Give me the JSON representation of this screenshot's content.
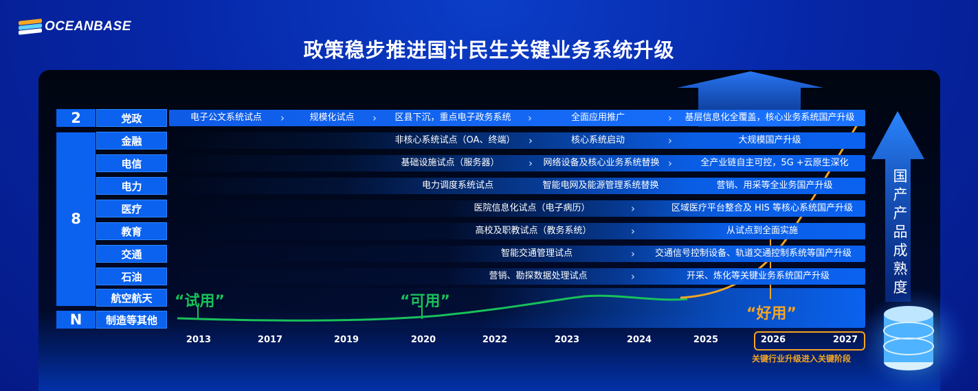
{
  "brand": {
    "name": "OCEANBASE"
  },
  "title": "政策稳步推进国计民生关键业务系统升级",
  "groups": [
    {
      "count": "2"
    },
    {
      "count": "8"
    },
    {
      "count": "N"
    }
  ],
  "industries": [
    {
      "label": "党政",
      "stages": [
        {
          "text": "电子公文系统试点",
          "arrow": true
        },
        {
          "text": "规模化试点",
          "arrow": true
        },
        {
          "text": "区县下沉，重点电子政务系统",
          "arrow": true
        },
        {
          "text": "全面应用推广",
          "arrow": true
        },
        {
          "text": "基层信息化全覆盖，核心业务系统国产升级",
          "arrow": false
        }
      ]
    },
    {
      "label": "金融",
      "stages": [
        {
          "text": "非核心系统试点（OA、终端）",
          "arrow": true
        },
        {
          "text": "核心系统启动",
          "arrow": true
        },
        {
          "text": "大规模国产升级",
          "arrow": false
        }
      ]
    },
    {
      "label": "电信",
      "stages": [
        {
          "text": "基础设施试点（服务器）",
          "arrow": true
        },
        {
          "text": "网络设备及核心业务系统替换",
          "arrow": true
        },
        {
          "text": "全产业链自主可控，5G +云原生深化",
          "arrow": false
        }
      ]
    },
    {
      "label": "电力",
      "stages": [
        {
          "text": "电力调度系统试点",
          "arrow": false
        },
        {
          "text": "智能电网及能源管理系统替换",
          "arrow": false
        },
        {
          "text": "营销、用采等全业务国产升级",
          "arrow": false
        }
      ]
    },
    {
      "label": "医疗",
      "stages": [
        {
          "text": "医院信息化试点（电子病历）",
          "arrow": true
        },
        {
          "text": "区域医疗平台整合及 HIS 等核心系统国产升级",
          "arrow": false
        }
      ]
    },
    {
      "label": "教育",
      "stages": [
        {
          "text": "高校及职教试点（教务系统）",
          "arrow": true
        },
        {
          "text": "从试点到全面实施",
          "arrow": false
        }
      ]
    },
    {
      "label": "交通",
      "stages": [
        {
          "text": "智能交通管理试点",
          "arrow": true
        },
        {
          "text": "交通信号控制设备、轨道交通控制系统等国产升级",
          "arrow": false
        }
      ]
    },
    {
      "label": "石油",
      "stages": [
        {
          "text": "营销、勘探数据处理试点",
          "arrow": true
        },
        {
          "text": "开采、炼化等关键业务系统国产升级",
          "arrow": false
        }
      ]
    },
    {
      "label": "航空航天",
      "stages": []
    },
    {
      "label": "制造等其他",
      "stages": []
    }
  ],
  "years": [
    "2013",
    "2017",
    "2019",
    "2020",
    "2022",
    "2023",
    "2024",
    "2025",
    "2026",
    "2027"
  ],
  "phases": [
    {
      "label": "“试用”",
      "color": "#19c15a"
    },
    {
      "label": "“可用”",
      "color": "#19c15a"
    },
    {
      "label": "“好用”",
      "color": "#f5a623"
    }
  ],
  "highlight_note": "关键行业升级进入关键阶段",
  "maturity_label": "国产产品成熟度",
  "colors": {
    "accent": "#0b62ef",
    "green": "#19c15a",
    "orange": "#f5a623"
  }
}
